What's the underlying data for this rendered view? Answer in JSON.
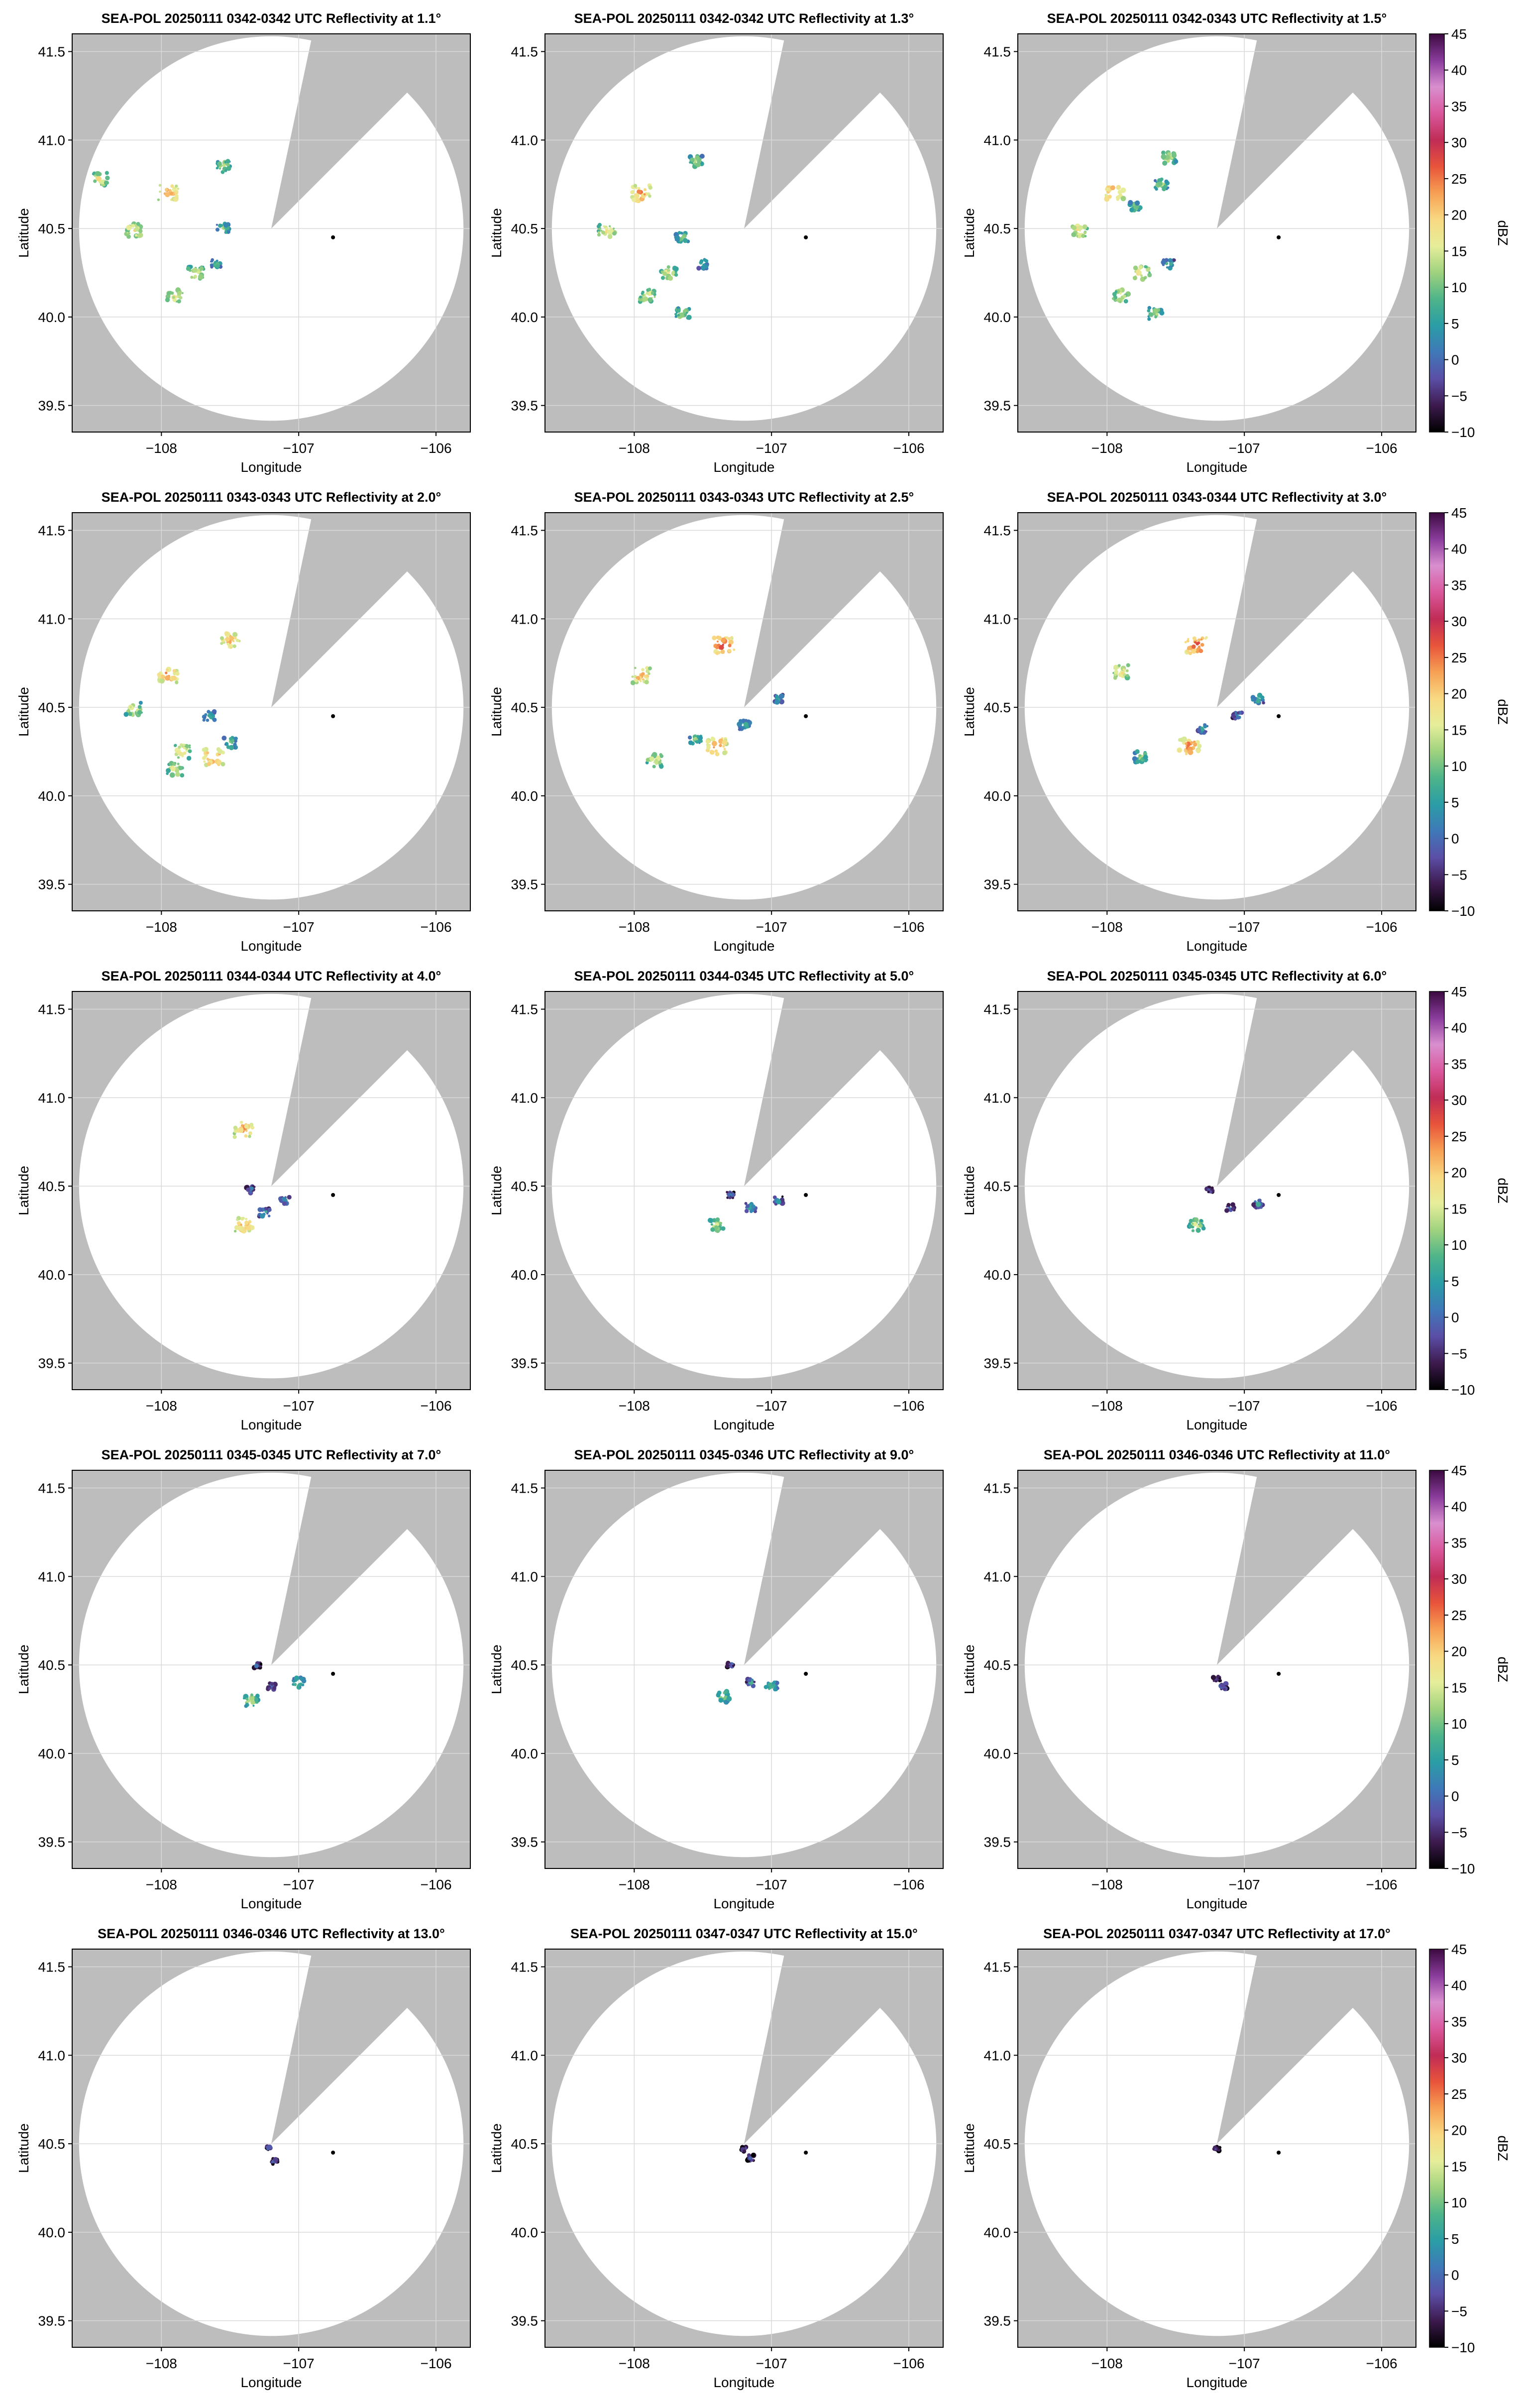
{
  "figure": {
    "title": "",
    "colorbar_label": "dBZ",
    "colorbar_ticks": [
      "45",
      "40",
      "35",
      "30",
      "25",
      "20",
      "15",
      "10",
      "5",
      "0",
      "−5",
      "−10"
    ],
    "colorbar_range": [
      -10,
      45
    ],
    "colormap_stops": [
      "#000000",
      "#3d1a4e",
      "#5b4ea6",
      "#3f78b8",
      "#2a9da6",
      "#4db48a",
      "#9fd27e",
      "#e6ee9a",
      "#f8d982",
      "#f7a054",
      "#e8543a",
      "#c02c56",
      "#d9589c",
      "#d98fcf",
      "#8a3c9c",
      "#3b0a40"
    ],
    "colors": {
      "background_mask": "#bdbdbd",
      "coverage": "#ffffff",
      "grid": "#d9d9d9",
      "radar_marker": "#000000"
    }
  },
  "chart_data": [
    {
      "type": "scatter",
      "title": "SEA-POL 20250111 0342-0342 UTC Reflectivity at 1.1°",
      "xlabel": "Longitude",
      "ylabel": "Latitude",
      "xlim": [
        -108.65,
        -105.75
      ],
      "ylim": [
        39.35,
        41.6
      ],
      "xticks": [
        "−108",
        "−107",
        "−106"
      ],
      "yticks": [
        "41.5",
        "41.0",
        "40.5",
        "40.0",
        "39.5"
      ],
      "radar_site": [
        -106.75,
        40.45
      ],
      "coverage": {
        "center": [
          -107.2,
          40.5
        ],
        "radius_deg": 1.4,
        "blocked_sector_deg": [
          12,
          45
        ]
      },
      "echoes": [
        {
          "lon": -107.95,
          "lat": 40.7,
          "dbz": 25
        },
        {
          "lon": -108.2,
          "lat": 40.49,
          "dbz": 20
        },
        {
          "lon": -108.45,
          "lat": 40.78,
          "dbz": 18
        },
        {
          "lon": -107.55,
          "lat": 40.5,
          "dbz": 12
        },
        {
          "lon": -107.75,
          "lat": 40.25,
          "dbz": 18
        },
        {
          "lon": -107.6,
          "lat": 40.3,
          "dbz": 10
        },
        {
          "lon": -107.9,
          "lat": 40.12,
          "dbz": 18
        },
        {
          "lon": -107.55,
          "lat": 40.85,
          "dbz": 15
        }
      ]
    },
    {
      "type": "scatter",
      "title": "SEA-POL 20250111 0342-0342 UTC Reflectivity at 1.3°",
      "xlabel": "Longitude",
      "ylabel": "Latitude",
      "xlim": [
        -108.65,
        -105.75
      ],
      "ylim": [
        39.35,
        41.6
      ],
      "xticks": [
        "−108",
        "−107",
        "−106"
      ],
      "yticks": [
        "41.5",
        "41.0",
        "40.5",
        "40.0",
        "39.5"
      ],
      "radar_site": [
        -106.75,
        40.45
      ],
      "coverage": {
        "center": [
          -107.2,
          40.5
        ],
        "radius_deg": 1.4,
        "blocked_sector_deg": [
          12,
          45
        ]
      },
      "echoes": [
        {
          "lon": -107.95,
          "lat": 40.7,
          "dbz": 25
        },
        {
          "lon": -108.2,
          "lat": 40.49,
          "dbz": 20
        },
        {
          "lon": -107.55,
          "lat": 40.88,
          "dbz": 14
        },
        {
          "lon": -107.65,
          "lat": 40.45,
          "dbz": 12
        },
        {
          "lon": -107.75,
          "lat": 40.25,
          "dbz": 18
        },
        {
          "lon": -107.5,
          "lat": 40.3,
          "dbz": 10
        },
        {
          "lon": -107.9,
          "lat": 40.12,
          "dbz": 18
        },
        {
          "lon": -107.65,
          "lat": 40.02,
          "dbz": 15
        }
      ]
    },
    {
      "type": "scatter",
      "title": "SEA-POL 20250111 0342-0343 UTC Reflectivity at 1.5°",
      "xlabel": "Longitude",
      "ylabel": "Latitude",
      "xlim": [
        -108.65,
        -105.75
      ],
      "ylim": [
        39.35,
        41.6
      ],
      "xticks": [
        "−108",
        "−107",
        "−106"
      ],
      "yticks": [
        "41.5",
        "41.0",
        "40.5",
        "40.0",
        "39.5"
      ],
      "radar_site": [
        -106.75,
        40.45
      ],
      "coverage": {
        "center": [
          -107.2,
          40.5
        ],
        "radius_deg": 1.4,
        "blocked_sector_deg": [
          12,
          45
        ]
      },
      "echoes": [
        {
          "lon": -107.95,
          "lat": 40.7,
          "dbz": 25
        },
        {
          "lon": -108.2,
          "lat": 40.49,
          "dbz": 20
        },
        {
          "lon": -107.55,
          "lat": 40.9,
          "dbz": 16
        },
        {
          "lon": -107.6,
          "lat": 40.75,
          "dbz": 14
        },
        {
          "lon": -107.8,
          "lat": 40.62,
          "dbz": 12
        },
        {
          "lon": -107.75,
          "lat": 40.25,
          "dbz": 20
        },
        {
          "lon": -107.55,
          "lat": 40.3,
          "dbz": 10
        },
        {
          "lon": -107.9,
          "lat": 40.12,
          "dbz": 18
        },
        {
          "lon": -107.65,
          "lat": 40.02,
          "dbz": 15
        }
      ]
    },
    {
      "type": "scatter",
      "title": "SEA-POL 20250111 0343-0343 UTC Reflectivity at 2.0°",
      "xlabel": "Longitude",
      "ylabel": "Latitude",
      "xlim": [
        -108.65,
        -105.75
      ],
      "ylim": [
        39.35,
        41.6
      ],
      "xticks": [
        "−108",
        "−107",
        "−106"
      ],
      "yticks": [
        "41.5",
        "41.0",
        "40.5",
        "40.0",
        "39.5"
      ],
      "radar_site": [
        -106.75,
        40.45
      ],
      "coverage": {
        "center": [
          -107.2,
          40.5
        ],
        "radius_deg": 1.4,
        "blocked_sector_deg": [
          12,
          45
        ]
      },
      "echoes": [
        {
          "lon": -107.95,
          "lat": 40.68,
          "dbz": 25
        },
        {
          "lon": -108.2,
          "lat": 40.49,
          "dbz": 18
        },
        {
          "lon": -107.5,
          "lat": 40.88,
          "dbz": 24
        },
        {
          "lon": -107.65,
          "lat": 40.45,
          "dbz": 10
        },
        {
          "lon": -107.5,
          "lat": 40.3,
          "dbz": 12
        },
        {
          "lon": -107.85,
          "lat": 40.25,
          "dbz": 20
        },
        {
          "lon": -107.62,
          "lat": 40.22,
          "dbz": 26
        },
        {
          "lon": -107.9,
          "lat": 40.15,
          "dbz": 18
        }
      ]
    },
    {
      "type": "scatter",
      "title": "SEA-POL 20250111 0343-0343 UTC Reflectivity at 2.5°",
      "xlabel": "Longitude",
      "ylabel": "Latitude",
      "xlim": [
        -108.65,
        -105.75
      ],
      "ylim": [
        39.35,
        41.6
      ],
      "xticks": [
        "−108",
        "−107",
        "−106"
      ],
      "yticks": [
        "41.5",
        "41.0",
        "40.5",
        "40.0",
        "39.5"
      ],
      "radar_site": [
        -106.75,
        40.45
      ],
      "coverage": {
        "center": [
          -107.2,
          40.5
        ],
        "radius_deg": 1.4,
        "blocked_sector_deg": [
          12,
          45
        ]
      },
      "echoes": [
        {
          "lon": -107.35,
          "lat": 40.85,
          "dbz": 28
        },
        {
          "lon": -107.95,
          "lat": 40.68,
          "dbz": 24
        },
        {
          "lon": -107.4,
          "lat": 40.28,
          "dbz": 26
        },
        {
          "lon": -107.55,
          "lat": 40.32,
          "dbz": 12
        },
        {
          "lon": -107.85,
          "lat": 40.2,
          "dbz": 18
        },
        {
          "lon": -107.2,
          "lat": 40.4,
          "dbz": 10
        },
        {
          "lon": -106.95,
          "lat": 40.55,
          "dbz": 8
        }
      ]
    },
    {
      "type": "scatter",
      "title": "SEA-POL 20250111 0343-0344 UTC Reflectivity at 3.0°",
      "xlabel": "Longitude",
      "ylabel": "Latitude",
      "xlim": [
        -108.65,
        -105.75
      ],
      "ylim": [
        39.35,
        41.6
      ],
      "xticks": [
        "−108",
        "−107",
        "−106"
      ],
      "yticks": [
        "41.5",
        "41.0",
        "40.5",
        "40.0",
        "39.5"
      ],
      "radar_site": [
        -106.75,
        40.45
      ],
      "coverage": {
        "center": [
          -107.2,
          40.5
        ],
        "radius_deg": 1.4,
        "blocked_sector_deg": [
          12,
          45
        ]
      },
      "echoes": [
        {
          "lon": -107.35,
          "lat": 40.85,
          "dbz": 28
        },
        {
          "lon": -107.9,
          "lat": 40.7,
          "dbz": 20
        },
        {
          "lon": -107.4,
          "lat": 40.28,
          "dbz": 26
        },
        {
          "lon": -107.3,
          "lat": 40.38,
          "dbz": 8
        },
        {
          "lon": -107.05,
          "lat": 40.45,
          "dbz": 6
        },
        {
          "lon": -107.75,
          "lat": 40.22,
          "dbz": 14
        },
        {
          "lon": -106.9,
          "lat": 40.55,
          "dbz": 10
        }
      ]
    },
    {
      "type": "scatter",
      "title": "SEA-POL 20250111 0344-0344 UTC Reflectivity at 4.0°",
      "xlabel": "Longitude",
      "ylabel": "Latitude",
      "xlim": [
        -108.65,
        -105.75
      ],
      "ylim": [
        39.35,
        41.6
      ],
      "xticks": [
        "−108",
        "−107",
        "−106"
      ],
      "yticks": [
        "41.5",
        "41.0",
        "40.5",
        "40.0",
        "39.5"
      ],
      "radar_site": [
        -106.75,
        40.45
      ],
      "coverage": {
        "center": [
          -107.2,
          40.5
        ],
        "radius_deg": 1.4,
        "blocked_sector_deg": [
          12,
          45
        ]
      },
      "echoes": [
        {
          "lon": -107.4,
          "lat": 40.82,
          "dbz": 24
        },
        {
          "lon": -107.4,
          "lat": 40.28,
          "dbz": 24
        },
        {
          "lon": -107.25,
          "lat": 40.35,
          "dbz": 8
        },
        {
          "lon": -107.1,
          "lat": 40.42,
          "dbz": 6
        },
        {
          "lon": -107.35,
          "lat": 40.48,
          "dbz": 4
        }
      ]
    },
    {
      "type": "scatter",
      "title": "SEA-POL 20250111 0344-0345 UTC Reflectivity at 5.0°",
      "xlabel": "Longitude",
      "ylabel": "Latitude",
      "xlim": [
        -108.65,
        -105.75
      ],
      "ylim": [
        39.35,
        41.6
      ],
      "xticks": [
        "−108",
        "−107",
        "−106"
      ],
      "yticks": [
        "41.5",
        "41.0",
        "40.5",
        "40.0",
        "39.5"
      ],
      "radar_site": [
        -106.75,
        40.45
      ],
      "coverage": {
        "center": [
          -107.2,
          40.5
        ],
        "radius_deg": 1.4,
        "blocked_sector_deg": [
          12,
          45
        ]
      },
      "echoes": [
        {
          "lon": -107.4,
          "lat": 40.28,
          "dbz": 16
        },
        {
          "lon": -107.3,
          "lat": 40.45,
          "dbz": 4
        },
        {
          "lon": -107.15,
          "lat": 40.38,
          "dbz": 8
        },
        {
          "lon": -106.95,
          "lat": 40.42,
          "dbz": 6
        }
      ]
    },
    {
      "type": "scatter",
      "title": "SEA-POL 20250111 0345-0345 UTC Reflectivity at 6.0°",
      "xlabel": "Longitude",
      "ylabel": "Latitude",
      "xlim": [
        -108.65,
        -105.75
      ],
      "ylim": [
        39.35,
        41.6
      ],
      "xticks": [
        "−108",
        "−107",
        "−106"
      ],
      "yticks": [
        "41.5",
        "41.0",
        "40.5",
        "40.0",
        "39.5"
      ],
      "radar_site": [
        -106.75,
        40.45
      ],
      "coverage": {
        "center": [
          -107.2,
          40.5
        ],
        "radius_deg": 1.4,
        "blocked_sector_deg": [
          12,
          45
        ]
      },
      "echoes": [
        {
          "lon": -107.35,
          "lat": 40.28,
          "dbz": 16
        },
        {
          "lon": -107.25,
          "lat": 40.48,
          "dbz": 2
        },
        {
          "lon": -107.1,
          "lat": 40.38,
          "dbz": 4
        },
        {
          "lon": -106.9,
          "lat": 40.4,
          "dbz": 6
        }
      ]
    },
    {
      "type": "scatter",
      "title": "SEA-POL 20250111 0345-0345 UTC Reflectivity at 7.0°",
      "xlabel": "Longitude",
      "ylabel": "Latitude",
      "xlim": [
        -108.65,
        -105.75
      ],
      "ylim": [
        39.35,
        41.6
      ],
      "xticks": [
        "−108",
        "−107",
        "−106"
      ],
      "yticks": [
        "41.5",
        "41.0",
        "40.5",
        "40.0",
        "39.5"
      ],
      "radar_site": [
        -106.75,
        40.45
      ],
      "coverage": {
        "center": [
          -107.2,
          40.5
        ],
        "radius_deg": 1.4,
        "blocked_sector_deg": [
          12,
          45
        ]
      },
      "echoes": [
        {
          "lon": -107.2,
          "lat": 40.38,
          "dbz": 4
        },
        {
          "lon": -107.3,
          "lat": 40.5,
          "dbz": 2
        },
        {
          "lon": -107.35,
          "lat": 40.3,
          "dbz": 16
        },
        {
          "lon": -107.0,
          "lat": 40.4,
          "dbz": 12
        }
      ]
    },
    {
      "type": "scatter",
      "title": "SEA-POL 20250111 0345-0346 UTC Reflectivity at 9.0°",
      "xlabel": "Longitude",
      "ylabel": "Latitude",
      "xlim": [
        -108.65,
        -105.75
      ],
      "ylim": [
        39.35,
        41.6
      ],
      "xticks": [
        "−108",
        "−107",
        "−106"
      ],
      "yticks": [
        "41.5",
        "41.0",
        "40.5",
        "40.0",
        "39.5"
      ],
      "radar_site": [
        -106.75,
        40.45
      ],
      "coverage": {
        "center": [
          -107.2,
          40.5
        ],
        "radius_deg": 1.4,
        "blocked_sector_deg": [
          12,
          45
        ]
      },
      "echoes": [
        {
          "lon": -107.15,
          "lat": 40.4,
          "dbz": 6
        },
        {
          "lon": -107.3,
          "lat": 40.5,
          "dbz": 2
        },
        {
          "lon": -107.35,
          "lat": 40.32,
          "dbz": 14
        },
        {
          "lon": -107.0,
          "lat": 40.38,
          "dbz": 12
        }
      ]
    },
    {
      "type": "scatter",
      "title": "SEA-POL 20250111 0346-0346 UTC Reflectivity at 11.0°",
      "xlabel": "Longitude",
      "ylabel": "Latitude",
      "xlim": [
        -108.65,
        -105.75
      ],
      "ylim": [
        39.35,
        41.6
      ],
      "xticks": [
        "−108",
        "−107",
        "−106"
      ],
      "yticks": [
        "41.5",
        "41.0",
        "40.5",
        "40.0",
        "39.5"
      ],
      "radar_site": [
        -106.75,
        40.45
      ],
      "coverage": {
        "center": [
          -107.2,
          40.5
        ],
        "radius_deg": 1.4,
        "blocked_sector_deg": [
          12,
          45
        ]
      },
      "echoes": [
        {
          "lon": -107.2,
          "lat": 40.42,
          "dbz": 2
        },
        {
          "lon": -107.15,
          "lat": 40.38,
          "dbz": 4
        }
      ]
    },
    {
      "type": "scatter",
      "title": "SEA-POL 20250111 0346-0346 UTC Reflectivity at 13.0°",
      "xlabel": "Longitude",
      "ylabel": "Latitude",
      "xlim": [
        -108.65,
        -105.75
      ],
      "ylim": [
        39.35,
        41.6
      ],
      "xticks": [
        "−108",
        "−107",
        "−106"
      ],
      "yticks": [
        "41.5",
        "41.0",
        "40.5",
        "40.0",
        "39.5"
      ],
      "radar_site": [
        -106.75,
        40.45
      ],
      "coverage": {
        "center": [
          -107.2,
          40.5
        ],
        "radius_deg": 1.4,
        "blocked_sector_deg": [
          12,
          45
        ]
      },
      "echoes": [
        {
          "lon": -107.22,
          "lat": 40.48,
          "dbz": 0
        },
        {
          "lon": -107.18,
          "lat": 40.4,
          "dbz": 2
        }
      ]
    },
    {
      "type": "scatter",
      "title": "SEA-POL 20250111 0347-0347 UTC Reflectivity at 15.0°",
      "xlabel": "Longitude",
      "ylabel": "Latitude",
      "xlim": [
        -108.65,
        -105.75
      ],
      "ylim": [
        39.35,
        41.6
      ],
      "xticks": [
        "−108",
        "−107",
        "−106"
      ],
      "yticks": [
        "41.5",
        "41.0",
        "40.5",
        "40.0",
        "39.5"
      ],
      "radar_site": [
        -106.75,
        40.45
      ],
      "coverage": {
        "center": [
          -107.2,
          40.5
        ],
        "radius_deg": 1.4,
        "blocked_sector_deg": [
          12,
          45
        ]
      },
      "echoes": [
        {
          "lon": -107.2,
          "lat": 40.47,
          "dbz": 0
        },
        {
          "lon": -107.15,
          "lat": 40.42,
          "dbz": 2
        }
      ]
    },
    {
      "type": "scatter",
      "title": "SEA-POL 20250111 0347-0347 UTC Reflectivity at 17.0°",
      "xlabel": "Longitude",
      "ylabel": "Latitude",
      "xlim": [
        -108.65,
        -105.75
      ],
      "ylim": [
        39.35,
        41.6
      ],
      "xticks": [
        "−108",
        "−107",
        "−106"
      ],
      "yticks": [
        "41.5",
        "41.0",
        "40.5",
        "40.0",
        "39.5"
      ],
      "radar_site": [
        -106.75,
        40.45
      ],
      "coverage": {
        "center": [
          -107.2,
          40.5
        ],
        "radius_deg": 1.4,
        "blocked_sector_deg": [
          12,
          45
        ]
      },
      "echoes": [
        {
          "lon": -107.2,
          "lat": 40.47,
          "dbz": 0
        }
      ]
    }
  ]
}
